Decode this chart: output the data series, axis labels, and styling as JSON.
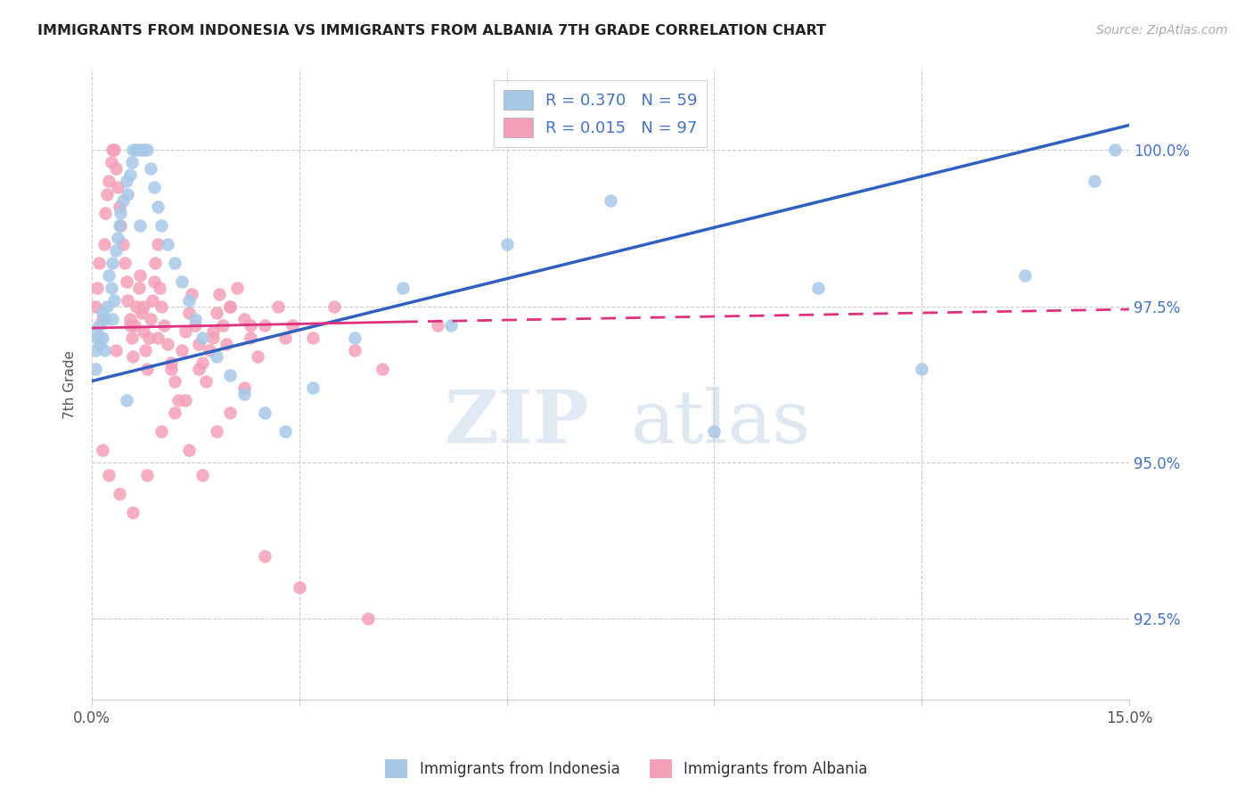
{
  "title": "IMMIGRANTS FROM INDONESIA VS IMMIGRANTS FROM ALBANIA 7TH GRADE CORRELATION CHART",
  "source": "Source: ZipAtlas.com",
  "ylabel": "7th Grade",
  "y_ticks": [
    92.5,
    95.0,
    97.5,
    100.0
  ],
  "y_tick_labels": [
    "92.5%",
    "95.0%",
    "97.5%",
    "100.0%"
  ],
  "x_ticks": [
    0.0,
    3.0,
    6.0,
    9.0,
    12.0,
    15.0
  ],
  "x_tick_labels": [
    "0.0%",
    "",
    "",
    "",
    "",
    "15.0%"
  ],
  "xlim": [
    0.0,
    15.0
  ],
  "ylim": [
    91.2,
    101.3
  ],
  "indonesia_color": "#a8c8e8",
  "albania_color": "#f4a0b8",
  "indonesia_line_color": "#3060c0",
  "albania_line_color": "#e03080",
  "indonesia_R": 0.37,
  "indonesia_N": 59,
  "albania_R": 0.015,
  "albania_N": 97,
  "legend_label_indonesia": "Immigrants from Indonesia",
  "legend_label_albania": "Immigrants from Albania",
  "indonesia_line_x0": 0.0,
  "indonesia_line_y0": 96.3,
  "indonesia_line_x1": 15.0,
  "indonesia_line_y1": 100.4,
  "albania_line_x0": 0.0,
  "albania_line_y0": 97.15,
  "albania_line_x1": 15.0,
  "albania_line_y1": 97.45,
  "albania_dash_x0": 4.5,
  "albania_dash_y0": 97.25,
  "albania_dash_x1": 15.0,
  "albania_dash_y1": 97.45,
  "indonesia_points_x": [
    0.05,
    0.05,
    0.05,
    0.08,
    0.1,
    0.12,
    0.15,
    0.15,
    0.18,
    0.2,
    0.22,
    0.25,
    0.28,
    0.3,
    0.32,
    0.35,
    0.38,
    0.4,
    0.42,
    0.45,
    0.5,
    0.52,
    0.55,
    0.58,
    0.6,
    0.65,
    0.7,
    0.75,
    0.8,
    0.85,
    0.9,
    0.95,
    1.0,
    1.1,
    1.2,
    1.3,
    1.4,
    1.5,
    1.6,
    1.8,
    2.0,
    2.2,
    2.5,
    2.8,
    3.2,
    3.8,
    4.5,
    5.2,
    6.0,
    7.5,
    9.0,
    10.5,
    12.0,
    13.5,
    14.5,
    14.8,
    0.3,
    0.5,
    0.7
  ],
  "indonesia_points_y": [
    97.1,
    96.8,
    96.5,
    97.0,
    97.2,
    96.9,
    97.4,
    97.0,
    96.8,
    97.3,
    97.5,
    98.0,
    97.8,
    98.2,
    97.6,
    98.4,
    98.6,
    98.8,
    99.0,
    99.2,
    99.5,
    99.3,
    99.6,
    99.8,
    100.0,
    100.0,
    100.0,
    100.0,
    100.0,
    99.7,
    99.4,
    99.1,
    98.8,
    98.5,
    98.2,
    97.9,
    97.6,
    97.3,
    97.0,
    96.7,
    96.4,
    96.1,
    95.8,
    95.5,
    96.2,
    97.0,
    97.8,
    97.2,
    98.5,
    99.2,
    95.5,
    97.8,
    96.5,
    98.0,
    99.5,
    100.0,
    97.3,
    96.0,
    98.8
  ],
  "albania_points_x": [
    0.05,
    0.08,
    0.1,
    0.12,
    0.15,
    0.18,
    0.2,
    0.22,
    0.25,
    0.28,
    0.3,
    0.32,
    0.35,
    0.38,
    0.4,
    0.42,
    0.45,
    0.48,
    0.5,
    0.52,
    0.55,
    0.58,
    0.6,
    0.62,
    0.65,
    0.68,
    0.7,
    0.72,
    0.75,
    0.78,
    0.8,
    0.82,
    0.85,
    0.88,
    0.9,
    0.92,
    0.95,
    0.98,
    1.0,
    1.05,
    1.1,
    1.15,
    1.2,
    1.25,
    1.3,
    1.35,
    1.4,
    1.45,
    1.5,
    1.55,
    1.6,
    1.65,
    1.7,
    1.75,
    1.8,
    1.85,
    1.9,
    1.95,
    2.0,
    2.1,
    2.2,
    2.3,
    2.4,
    2.5,
    2.7,
    2.9,
    3.2,
    3.5,
    3.8,
    4.2,
    5.0,
    0.15,
    0.25,
    0.4,
    0.6,
    0.8,
    1.0,
    1.2,
    1.4,
    1.6,
    1.8,
    2.0,
    2.2,
    2.5,
    3.0,
    4.0,
    0.35,
    0.55,
    0.75,
    0.95,
    1.15,
    1.35,
    1.55,
    1.75,
    2.0,
    2.3,
    2.8
  ],
  "albania_points_y": [
    97.5,
    97.8,
    98.2,
    97.0,
    97.3,
    98.5,
    99.0,
    99.3,
    99.5,
    99.8,
    100.0,
    100.0,
    99.7,
    99.4,
    99.1,
    98.8,
    98.5,
    98.2,
    97.9,
    97.6,
    97.3,
    97.0,
    96.7,
    97.2,
    97.5,
    97.8,
    98.0,
    97.4,
    97.1,
    96.8,
    96.5,
    97.0,
    97.3,
    97.6,
    97.9,
    98.2,
    98.5,
    97.8,
    97.5,
    97.2,
    96.9,
    96.6,
    96.3,
    96.0,
    96.8,
    97.1,
    97.4,
    97.7,
    97.2,
    96.9,
    96.6,
    96.3,
    96.8,
    97.1,
    97.4,
    97.7,
    97.2,
    96.9,
    97.5,
    97.8,
    97.3,
    97.0,
    96.7,
    97.2,
    97.5,
    97.2,
    97.0,
    97.5,
    96.8,
    96.5,
    97.2,
    95.2,
    94.8,
    94.5,
    94.2,
    94.8,
    95.5,
    95.8,
    95.2,
    94.8,
    95.5,
    95.8,
    96.2,
    93.5,
    93.0,
    92.5,
    96.8,
    97.2,
    97.5,
    97.0,
    96.5,
    96.0,
    96.5,
    97.0,
    97.5,
    97.2,
    97.0
  ]
}
